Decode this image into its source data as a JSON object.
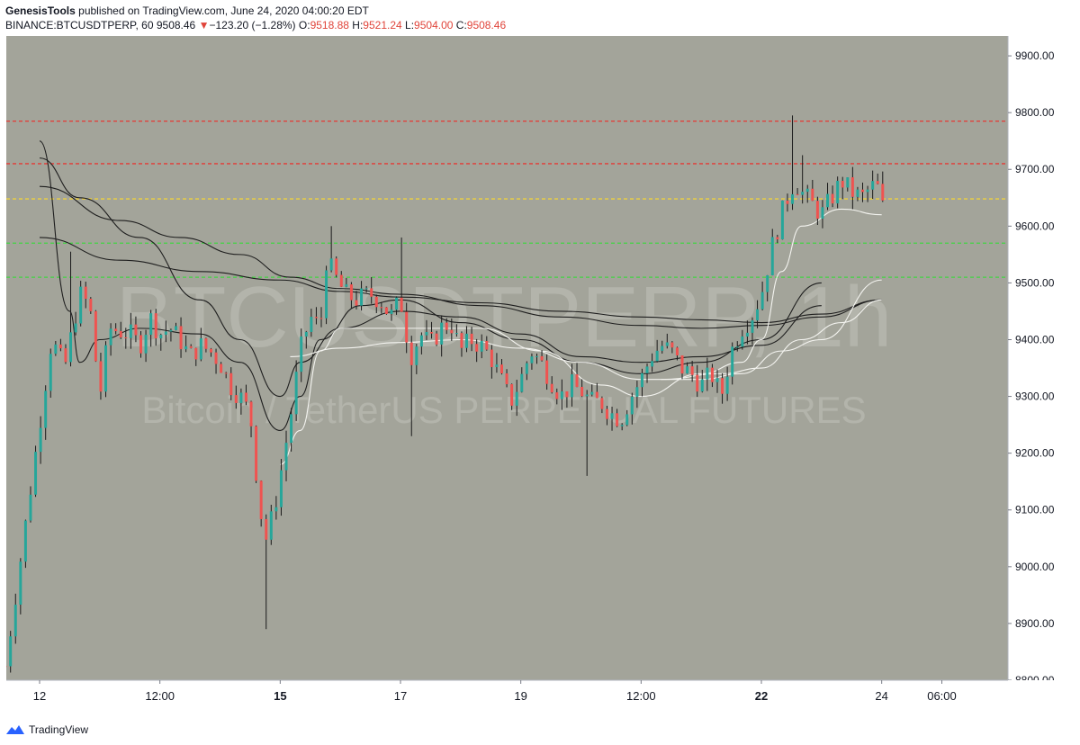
{
  "header": {
    "author": "GenesisTools",
    "published_text": "published on TradingView.com, June 24, 2020 04:00:20 EDT",
    "symbol": "BINANCE:BTCUSDTPERP, 60",
    "last_price": "9508.46",
    "change_arrow": "▼",
    "change": "−123.20 (−1.28%)",
    "o_label": "O:",
    "o_value": "9518.88",
    "h_label": "H:",
    "h_value": "9521.24",
    "l_label": "L:",
    "l_value": "9504.00",
    "c_label": "C:",
    "c_value": "9508.46"
  },
  "watermark": {
    "line1": "BTCUSDTPERP, 1h",
    "line2": "Bitcoin / TetherUS PERPETUAL FUTURES"
  },
  "footer": {
    "brand": "TradingView"
  },
  "colors": {
    "plot_bg": "#a3a49a",
    "up": "#26a69a",
    "down": "#ef5350",
    "resistance_line": "#e53935",
    "pivot_line": "#f0d23c",
    "support_line": "#43d343",
    "ma_dark": "#1e1e1e",
    "ma_light": "#f4f4f0"
  },
  "chart_data": {
    "type": "candlestick",
    "timeframe": "60",
    "ylim": [
      8800,
      9935
    ],
    "y_ticks": [
      "9900.00",
      "9800.00",
      "9700.00",
      "9600.00",
      "9500.00",
      "9400.00",
      "9300.00",
      "9200.00",
      "9100.00",
      "9000.00",
      "8900.00",
      "8800.00"
    ],
    "y_tick_values": [
      9900,
      9800,
      9700,
      9600,
      9500,
      9400,
      9300,
      9200,
      9100,
      9000,
      8900,
      8800
    ],
    "x_ticks": [
      {
        "label": "12",
        "hour": 0,
        "bold": false
      },
      {
        "label": "12:00",
        "hour": 12,
        "bold": false
      },
      {
        "label": "15",
        "hour": 24,
        "bold": true
      },
      {
        "label": "17",
        "hour": 36,
        "bold": false
      },
      {
        "label": "19",
        "hour": 48,
        "bold": false
      },
      {
        "label": "12:00",
        "hour": 60,
        "bold": false
      },
      {
        "label": "22",
        "hour": 72,
        "bold": true
      },
      {
        "label": "24",
        "hour": 84,
        "bold": false
      },
      {
        "label": "06:00",
        "hour": 90,
        "bold": false
      }
    ],
    "horizontal_levels": [
      {
        "price": 9785,
        "kind": "resistance"
      },
      {
        "price": 9710,
        "kind": "resistance"
      },
      {
        "price": 9648,
        "kind": "pivot"
      },
      {
        "price": 9570,
        "kind": "support"
      },
      {
        "price": 9510,
        "kind": "support"
      }
    ],
    "close_anchors": [
      [
        0,
        9250
      ],
      [
        1.2,
        9400
      ],
      [
        2.5,
        9350
      ],
      [
        4,
        9480
      ],
      [
        5,
        9460
      ],
      [
        6,
        9300
      ],
      [
        7,
        9420
      ],
      [
        9,
        9410
      ],
      [
        10,
        9390
      ],
      [
        11,
        9440
      ],
      [
        12,
        9410
      ],
      [
        13,
        9420
      ],
      [
        14,
        9400
      ],
      [
        15,
        9370
      ],
      [
        16,
        9390
      ],
      [
        17,
        9380
      ],
      [
        18,
        9360
      ],
      [
        19,
        9320
      ],
      [
        20,
        9300
      ],
      [
        21,
        9270
      ],
      [
        22,
        9100
      ],
      [
        22.6,
        9050
      ],
      [
        23.4,
        9100
      ],
      [
        24.2,
        9180
      ],
      [
        25,
        9260
      ],
      [
        26,
        9380
      ],
      [
        27,
        9440
      ],
      [
        28,
        9420
      ],
      [
        28.6,
        9540
      ],
      [
        29.5,
        9510
      ],
      [
        30.5,
        9480
      ],
      [
        31.5,
        9470
      ],
      [
        33,
        9480
      ],
      [
        34,
        9470
      ],
      [
        35,
        9440
      ],
      [
        36,
        9470
      ],
      [
        37,
        9370
      ],
      [
        38,
        9410
      ],
      [
        39,
        9390
      ],
      [
        40,
        9420
      ],
      [
        41,
        9430
      ],
      [
        42,
        9380
      ],
      [
        43,
        9400
      ],
      [
        44,
        9390
      ],
      [
        45,
        9370
      ],
      [
        46,
        9330
      ],
      [
        47,
        9290
      ],
      [
        48,
        9330
      ],
      [
        49,
        9380
      ],
      [
        50,
        9360
      ],
      [
        51,
        9330
      ],
      [
        52,
        9300
      ],
      [
        53,
        9320
      ],
      [
        54,
        9310
      ],
      [
        55,
        9290
      ],
      [
        56,
        9290
      ],
      [
        57,
        9270
      ],
      [
        58,
        9260
      ],
      [
        59,
        9300
      ],
      [
        60,
        9330
      ],
      [
        61,
        9370
      ],
      [
        62,
        9390
      ],
      [
        63,
        9380
      ],
      [
        64,
        9350
      ],
      [
        65,
        9340
      ],
      [
        66,
        9320
      ],
      [
        67,
        9340
      ],
      [
        68,
        9300
      ],
      [
        69,
        9380
      ],
      [
        70,
        9420
      ],
      [
        71,
        9440
      ],
      [
        72,
        9480
      ],
      [
        73,
        9560
      ],
      [
        74,
        9620
      ],
      [
        74.6,
        9650
      ],
      [
        75.3,
        9680
      ],
      [
        76,
        9660
      ],
      [
        77,
        9640
      ],
      [
        78,
        9620
      ],
      [
        79,
        9650
      ],
      [
        80,
        9680
      ],
      [
        81,
        9660
      ],
      [
        82,
        9650
      ],
      [
        83,
        9670
      ],
      [
        84,
        9665
      ],
      [
        84.5,
        9508
      ]
    ],
    "wick_spikes": [
      {
        "hour": 3.2,
        "price": 9555
      },
      {
        "hour": 22.8,
        "price": 8890
      },
      {
        "hour": 29,
        "price": 9600
      },
      {
        "hour": 36.2,
        "price": 9580
      },
      {
        "hour": 37,
        "price": 9230
      },
      {
        "hour": 54.8,
        "price": 9160
      },
      {
        "hour": 75.3,
        "price": 9795
      },
      {
        "hour": 76,
        "price": 9725
      }
    ],
    "moving_averages": [
      {
        "color": "dark",
        "points": [
          [
            0,
            9750
          ],
          [
            3,
            9450
          ],
          [
            4,
            9360
          ],
          [
            6,
            9400
          ],
          [
            10,
            9420
          ],
          [
            16,
            9410
          ],
          [
            20,
            9360
          ],
          [
            24,
            9240
          ],
          [
            26,
            9300
          ],
          [
            28,
            9400
          ],
          [
            32,
            9460
          ],
          [
            36,
            9470
          ],
          [
            42,
            9430
          ],
          [
            48,
            9400
          ],
          [
            54,
            9360
          ],
          [
            60,
            9340
          ],
          [
            66,
            9360
          ],
          [
            72,
            9400
          ],
          [
            78,
            9500
          ]
        ]
      },
      {
        "color": "dark",
        "points": [
          [
            0,
            9720
          ],
          [
            4,
            9650
          ],
          [
            10,
            9580
          ],
          [
            16,
            9470
          ],
          [
            20,
            9400
          ],
          [
            24,
            9300
          ],
          [
            26,
            9360
          ],
          [
            30,
            9420
          ],
          [
            36,
            9450
          ],
          [
            42,
            9440
          ],
          [
            48,
            9410
          ],
          [
            54,
            9370
          ],
          [
            60,
            9360
          ],
          [
            66,
            9370
          ],
          [
            72,
            9390
          ],
          [
            78,
            9460
          ]
        ]
      },
      {
        "color": "dark",
        "points": [
          [
            0,
            9670
          ],
          [
            8,
            9610
          ],
          [
            14,
            9580
          ],
          [
            20,
            9550
          ],
          [
            25,
            9510
          ],
          [
            30,
            9490
          ],
          [
            36,
            9480
          ],
          [
            44,
            9460
          ],
          [
            52,
            9440
          ],
          [
            60,
            9425
          ],
          [
            66,
            9420
          ],
          [
            72,
            9425
          ],
          [
            78,
            9440
          ],
          [
            84,
            9470
          ]
        ]
      },
      {
        "color": "dark",
        "points": [
          [
            0,
            9580
          ],
          [
            8,
            9540
          ],
          [
            16,
            9520
          ],
          [
            24,
            9505
          ],
          [
            30,
            9485
          ],
          [
            36,
            9475
          ],
          [
            44,
            9465
          ],
          [
            52,
            9450
          ],
          [
            60,
            9440
          ],
          [
            66,
            9435
          ],
          [
            72,
            9430
          ],
          [
            78,
            9445
          ],
          [
            84,
            9470
          ]
        ]
      },
      {
        "color": "light",
        "points": [
          [
            24,
            9180
          ],
          [
            26,
            9240
          ],
          [
            28,
            9380
          ],
          [
            30,
            9420
          ],
          [
            36,
            9420
          ],
          [
            44,
            9420
          ],
          [
            50,
            9380
          ],
          [
            56,
            9320
          ],
          [
            60,
            9300
          ],
          [
            66,
            9340
          ],
          [
            70,
            9360
          ],
          [
            72,
            9400
          ],
          [
            74,
            9520
          ],
          [
            76,
            9600
          ],
          [
            80,
            9630
          ],
          [
            84,
            9620
          ]
        ]
      },
      {
        "color": "light",
        "points": [
          [
            25,
            9370
          ],
          [
            30,
            9385
          ],
          [
            36,
            9395
          ],
          [
            42,
            9400
          ],
          [
            48,
            9385
          ],
          [
            54,
            9360
          ],
          [
            60,
            9330
          ],
          [
            66,
            9330
          ],
          [
            70,
            9340
          ],
          [
            74,
            9380
          ],
          [
            78,
            9400
          ],
          [
            84,
            9505
          ]
        ]
      },
      {
        "color": "light",
        "points": [
          [
            62,
            9330
          ],
          [
            68,
            9340
          ],
          [
            72,
            9350
          ],
          [
            76,
            9400
          ],
          [
            80,
            9430
          ],
          [
            84,
            9470
          ]
        ]
      }
    ]
  }
}
